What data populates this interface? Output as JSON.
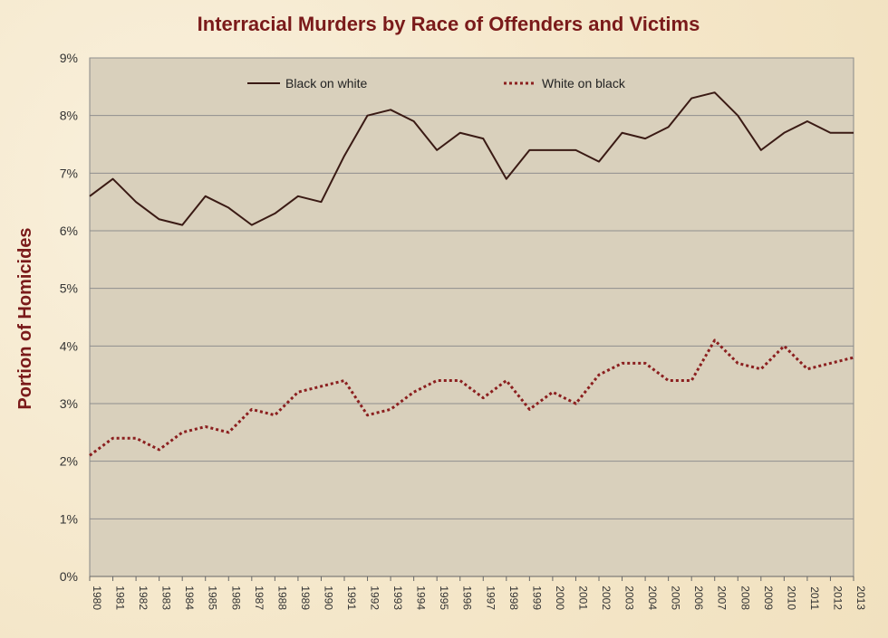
{
  "chart_data": {
    "type": "line",
    "title": "Interracial Murders by Race of Offenders and Victims",
    "ylabel": "Portion of Homicides",
    "xlabel": "",
    "y_ticks": [
      "0%",
      "1%",
      "2%",
      "3%",
      "4%",
      "5%",
      "6%",
      "7%",
      "8%",
      "9%"
    ],
    "ylim": [
      0,
      9
    ],
    "grid": true,
    "legend_position": "top",
    "x": [
      "1980",
      "1981",
      "1982",
      "1983",
      "1984",
      "1985",
      "1986",
      "1987",
      "1988",
      "1989",
      "1990",
      "1991",
      "1992",
      "1993",
      "1994",
      "1995",
      "1996",
      "1997",
      "1998",
      "1999",
      "2000",
      "2001",
      "2002",
      "2003",
      "2004",
      "2005",
      "2006",
      "2007",
      "2008",
      "2009",
      "2010",
      "2011",
      "2012",
      "2013"
    ],
    "series": [
      {
        "name": "Black on white",
        "color": "#3a1a14",
        "style": "solid",
        "values": [
          6.6,
          6.9,
          6.5,
          6.2,
          6.1,
          6.6,
          6.4,
          6.1,
          6.3,
          6.6,
          6.5,
          7.3,
          8.0,
          8.1,
          7.9,
          7.4,
          7.7,
          7.6,
          6.9,
          7.4,
          7.4,
          7.4,
          7.2,
          7.7,
          7.6,
          7.8,
          8.3,
          8.4,
          8.0,
          7.4,
          7.7,
          7.9,
          7.7,
          7.7
        ]
      },
      {
        "name": "White on black",
        "color": "#8b1f1f",
        "style": "dotted",
        "values": [
          2.1,
          2.4,
          2.4,
          2.2,
          2.5,
          2.6,
          2.5,
          2.9,
          2.8,
          3.2,
          3.3,
          3.4,
          2.8,
          2.9,
          3.2,
          3.4,
          3.4,
          3.1,
          3.4,
          2.9,
          3.2,
          3.0,
          3.5,
          3.7,
          3.7,
          3.4,
          3.4,
          4.1,
          3.7,
          3.6,
          4.0,
          3.6,
          3.7,
          3.8
        ]
      }
    ]
  }
}
